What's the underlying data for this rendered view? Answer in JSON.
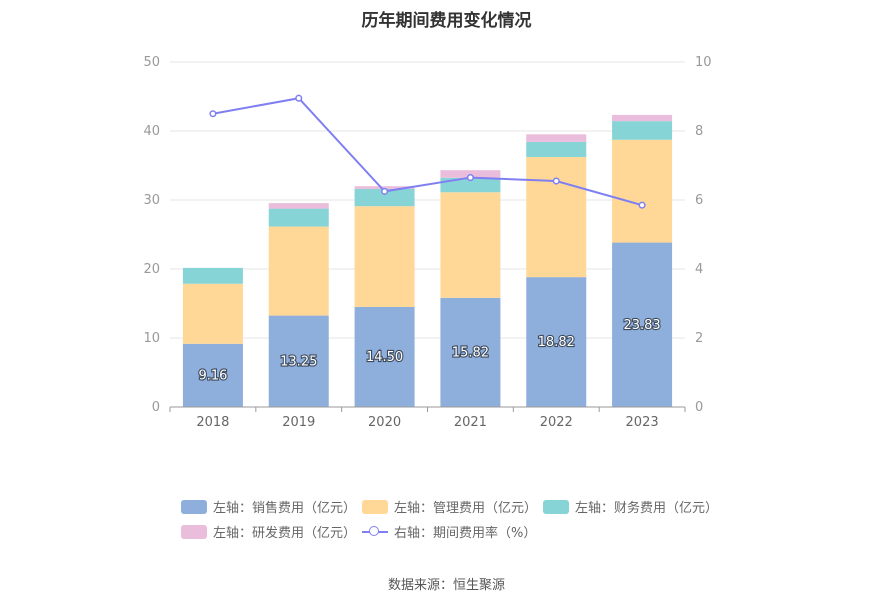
{
  "title": "历年期间费用变化情况",
  "source": "数据来源：恒生聚源",
  "colors": {
    "sales": "#8eaedb",
    "admin": "#ffd897",
    "finance": "#87d4d6",
    "rnd": "#e9bddb",
    "rate": "#7f7ff2",
    "axis_text": "#999999",
    "grid": "#e6e6e6"
  },
  "legend": [
    {
      "key": "sales",
      "label": "左轴：销售费用（亿元）",
      "kind": "bar"
    },
    {
      "key": "admin",
      "label": "左轴：管理费用（亿元）",
      "kind": "bar"
    },
    {
      "key": "finance",
      "label": "左轴：财务费用（亿元）",
      "kind": "bar"
    },
    {
      "key": "rnd",
      "label": "左轴：研发费用（亿元）",
      "kind": "bar"
    },
    {
      "key": "rate",
      "label": "右轴：期间费用率（%）",
      "kind": "line"
    }
  ],
  "chart_data": {
    "type": "bar",
    "stacked": true,
    "categories": [
      "2018",
      "2019",
      "2020",
      "2021",
      "2022",
      "2023"
    ],
    "y_left": {
      "min": 0,
      "max": 50,
      "ticks": [
        0,
        10,
        20,
        30,
        40,
        50
      ]
    },
    "y_right": {
      "min": 0,
      "max": 10,
      "ticks": [
        0,
        2,
        4,
        6,
        8,
        10
      ]
    },
    "grid": true,
    "legend_position": "bottom",
    "series": [
      {
        "key": "sales",
        "name": "左轴：销售费用（亿元）",
        "axis": "left",
        "type": "bar",
        "values": [
          9.16,
          13.25,
          14.5,
          15.82,
          18.82,
          23.83
        ],
        "labels": [
          "9.16",
          "13.25",
          "14.50",
          "15.82",
          "18.82",
          "23.83"
        ]
      },
      {
        "key": "admin",
        "name": "左轴：管理费用（亿元）",
        "axis": "left",
        "type": "bar",
        "values": [
          8.7,
          12.9,
          14.6,
          15.3,
          17.4,
          14.9
        ]
      },
      {
        "key": "finance",
        "name": "左轴：财务费用（亿元）",
        "axis": "left",
        "type": "bar",
        "values": [
          2.3,
          2.6,
          2.5,
          2.1,
          2.2,
          2.7
        ]
      },
      {
        "key": "rnd",
        "name": "左轴：研发费用（亿元）",
        "axis": "left",
        "type": "bar",
        "values": [
          0,
          0.8,
          0.4,
          1.1,
          1.1,
          0.9
        ]
      },
      {
        "key": "rate",
        "name": "右轴：期间费用率（%）",
        "axis": "right",
        "type": "line",
        "values": [
          8.5,
          8.95,
          6.25,
          6.65,
          6.55,
          5.85
        ]
      }
    ]
  }
}
